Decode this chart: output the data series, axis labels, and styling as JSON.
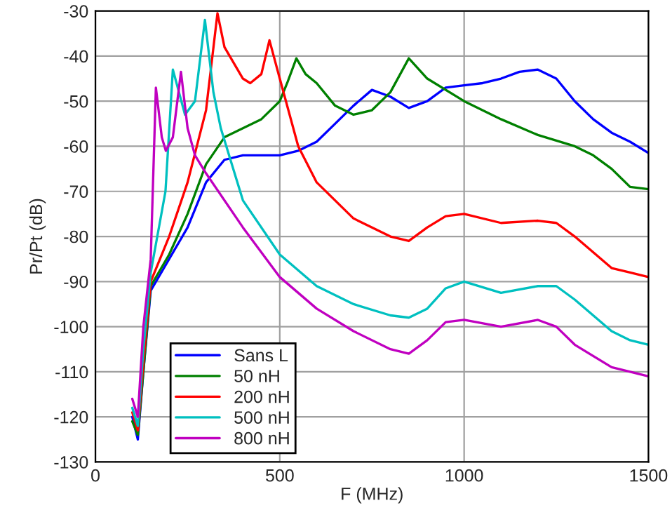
{
  "chart_data": {
    "type": "line",
    "xlabel": "F (MHz)",
    "ylabel": "Pr/Pt (dB)",
    "xlim": [
      0,
      1500
    ],
    "xticks": [
      0,
      500,
      1000,
      1500
    ],
    "ylim": [
      -130,
      -30
    ],
    "yticks": [
      -130,
      -120,
      -110,
      -100,
      -90,
      -80,
      -70,
      -60,
      -50,
      -40,
      -30
    ],
    "grid": true,
    "legend": "bottom left",
    "marker": "none",
    "line_style": "solid",
    "series": [
      {
        "name": "Sans L",
        "color": "#0000ff",
        "x": [
          100,
          115,
          130,
          150,
          200,
          250,
          300,
          350,
          400,
          500,
          550,
          600,
          650,
          700,
          750,
          800,
          850,
          900,
          950,
          1000,
          1050,
          1100,
          1150,
          1200,
          1250,
          1300,
          1350,
          1400,
          1450,
          1500
        ],
        "values": [
          -120,
          -125,
          -110,
          -92,
          -85,
          -78,
          -68,
          -63,
          -62,
          -62,
          -61,
          -59,
          -55,
          -51,
          -47.5,
          -49,
          -51.5,
          -50,
          -47,
          -46.5,
          -46,
          -45,
          -43.5,
          -43,
          -45,
          -50,
          -54,
          -57,
          -59,
          -61.5
        ]
      },
      {
        "name": "50 nH",
        "color": "#008000",
        "x": [
          100,
          115,
          130,
          150,
          200,
          250,
          300,
          350,
          400,
          450,
          500,
          520,
          545,
          570,
          600,
          650,
          700,
          750,
          800,
          850,
          900,
          1000,
          1100,
          1200,
          1300,
          1350,
          1400,
          1450,
          1500
        ],
        "values": [
          -121,
          -124,
          -110,
          -91,
          -84,
          -75,
          -64,
          -58,
          -56,
          -54,
          -50,
          -46,
          -40.5,
          -44,
          -46,
          -51,
          -53,
          -52,
          -48,
          -40.5,
          -45,
          -50,
          -54,
          -57.5,
          -60,
          -62,
          -65,
          -69,
          -69.5
        ]
      },
      {
        "name": "200 nH",
        "color": "#ff0000",
        "x": [
          100,
          115,
          130,
          150,
          200,
          250,
          300,
          331,
          350,
          400,
          420,
          450,
          472,
          500,
          550,
          600,
          700,
          800,
          850,
          900,
          950,
          1000,
          1100,
          1200,
          1250,
          1300,
          1400,
          1450,
          1500
        ],
        "values": [
          -119,
          -123,
          -108,
          -90,
          -80,
          -68,
          -52,
          -30.5,
          -38,
          -45,
          -46,
          -44,
          -36.5,
          -45,
          -60,
          -68,
          -76,
          -80,
          -81,
          -78,
          -75.5,
          -75,
          -77,
          -76.5,
          -77,
          -80,
          -87,
          -88,
          -89
        ]
      },
      {
        "name": "500 nH",
        "color": "#00c0c0",
        "x": [
          100,
          115,
          130,
          150,
          190,
          210,
          243,
          270,
          297,
          320,
          340,
          400,
          500,
          600,
          700,
          800,
          850,
          900,
          950,
          1000,
          1100,
          1200,
          1250,
          1300,
          1400,
          1450,
          1500
        ],
        "values": [
          -118,
          -122,
          -105,
          -88,
          -70,
          -43,
          -53,
          -50,
          -32,
          -48,
          -56,
          -72,
          -84,
          -91,
          -95,
          -97.5,
          -98,
          -96,
          -91.5,
          -90,
          -92.5,
          -91,
          -91,
          -94,
          -101,
          -103,
          -104
        ]
      },
      {
        "name": "800 nH",
        "color": "#c000c0",
        "x": [
          100,
          115,
          130,
          150,
          164,
          180,
          191,
          210,
          232,
          250,
          270,
          300,
          400,
          500,
          600,
          700,
          800,
          850,
          900,
          950,
          1000,
          1100,
          1200,
          1250,
          1300,
          1400,
          1450,
          1500
        ],
        "values": [
          -116,
          -120,
          -100,
          -85,
          -47,
          -58,
          -61,
          -58,
          -43.5,
          -56,
          -62,
          -66,
          -78,
          -89,
          -96,
          -101,
          -105,
          -106,
          -103,
          -99,
          -98.5,
          -100,
          -98.5,
          -100,
          -104,
          -109,
          -110,
          -111
        ]
      }
    ]
  }
}
